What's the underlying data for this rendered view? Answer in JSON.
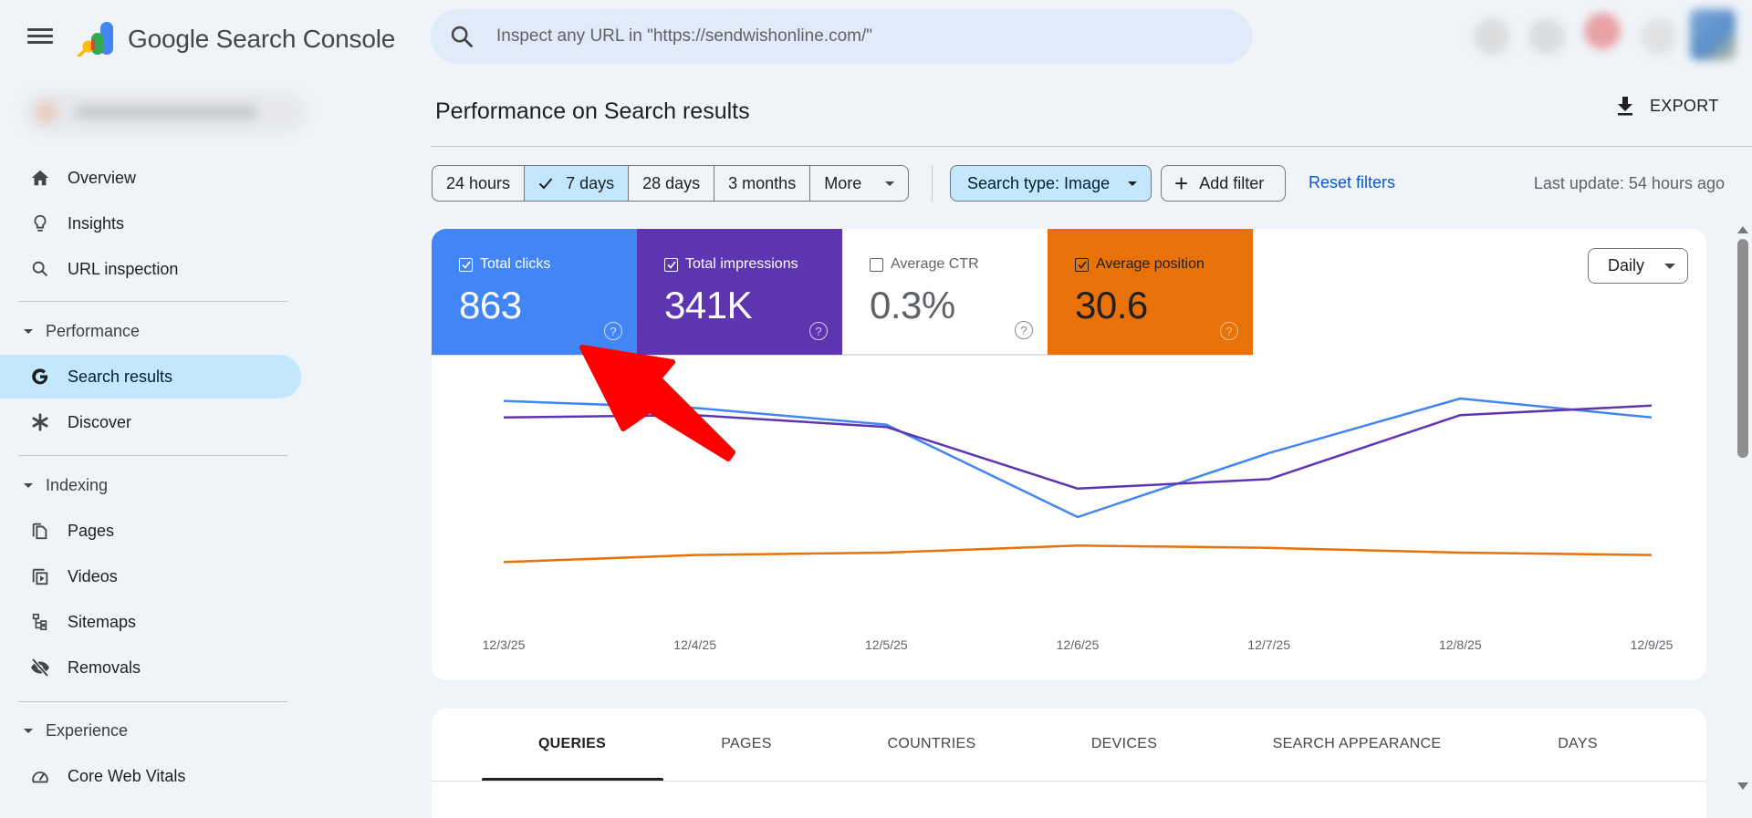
{
  "header": {
    "app_title": "Google Search Console",
    "search_placeholder": "Inspect any URL in \"https://sendwishonline.com/\""
  },
  "sidebar": {
    "property_name": "",
    "top_items": [
      {
        "label": "Overview",
        "icon": "home-icon"
      },
      {
        "label": "Insights",
        "icon": "lightbulb-icon"
      },
      {
        "label": "URL inspection",
        "icon": "search-icon"
      }
    ],
    "sections": [
      {
        "label": "Performance",
        "items": [
          {
            "label": "Search results",
            "icon": "google-g-icon",
            "active": true
          },
          {
            "label": "Discover",
            "icon": "asterisk-icon"
          }
        ]
      },
      {
        "label": "Indexing",
        "items": [
          {
            "label": "Pages",
            "icon": "pages-icon"
          },
          {
            "label": "Videos",
            "icon": "video-icon"
          },
          {
            "label": "Sitemaps",
            "icon": "sitemap-icon"
          },
          {
            "label": "Removals",
            "icon": "eye-off-icon"
          }
        ]
      },
      {
        "label": "Experience",
        "items": [
          {
            "label": "Core Web Vitals",
            "icon": "gauge-icon"
          }
        ]
      }
    ]
  },
  "main": {
    "page_title": "Performance on Search results",
    "export_label": "EXPORT",
    "date_ranges": [
      {
        "label": "24 hours",
        "active": false
      },
      {
        "label": "7 days",
        "active": true
      },
      {
        "label": "28 days",
        "active": false
      },
      {
        "label": "3 months",
        "active": false
      },
      {
        "label": "More",
        "active": false
      }
    ],
    "search_type_chip": "Search type: Image",
    "add_filter_label": "Add filter",
    "reset_filters_label": "Reset filters",
    "last_update": "Last update: 54 hours ago",
    "metrics": [
      {
        "label": "Total clicks",
        "value": "863",
        "checked": true,
        "color": "#4285f4"
      },
      {
        "label": "Total impressions",
        "value": "341K",
        "checked": true,
        "color": "#5e35b1"
      },
      {
        "label": "Average CTR",
        "value": "0.3%",
        "checked": false,
        "color": "#ffffff"
      },
      {
        "label": "Average position",
        "value": "30.6",
        "checked": true,
        "color": "#e8710a"
      }
    ],
    "granularity": "Daily",
    "tabs": [
      "QUERIES",
      "PAGES",
      "COUNTRIES",
      "DEVICES",
      "SEARCH APPEARANCE",
      "DAYS"
    ],
    "active_tab": "QUERIES"
  },
  "chart_data": {
    "type": "line",
    "title": "",
    "xlabel": "",
    "ylabel": "",
    "categories": [
      "12/3/25",
      "12/4/25",
      "12/5/25",
      "12/6/25",
      "12/7/25",
      "12/8/25",
      "12/9/25"
    ],
    "series": [
      {
        "name": "Total clicks",
        "color": "#4285f4",
        "relative_values": [
          0.89,
          0.86,
          0.79,
          0.4,
          0.67,
          0.9,
          0.82
        ]
      },
      {
        "name": "Total impressions",
        "color": "#5e35b1",
        "relative_values": [
          0.82,
          0.83,
          0.78,
          0.52,
          0.56,
          0.83,
          0.87
        ]
      },
      {
        "name": "Average position",
        "color": "#e8710a",
        "relative_values": [
          0.21,
          0.24,
          0.25,
          0.28,
          0.27,
          0.25,
          0.24
        ]
      }
    ],
    "axis_note": "Y axes hidden; values are relative heights within plot area",
    "grid": false,
    "legend_position": "metric cards above chart"
  },
  "annotation": {
    "type": "red-arrow",
    "color": "#ff0000",
    "points_to": "Total clicks card"
  }
}
